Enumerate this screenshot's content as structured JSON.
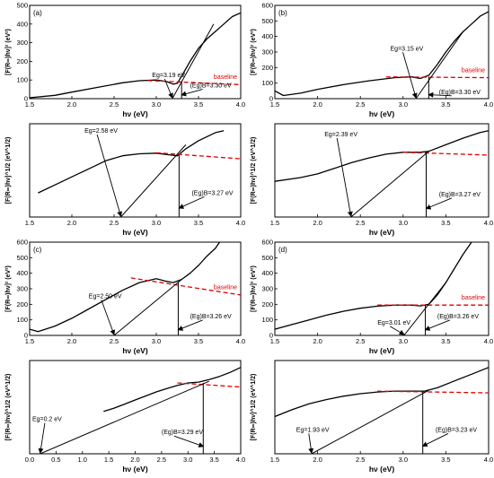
{
  "chart_data": [
    {
      "type": "line",
      "panel_label": "(a)",
      "xlabel": "hν (eV)",
      "ylabel": "[F(R∞)hν]² (eV²)",
      "xlim": [
        1.5,
        4.0
      ],
      "ylim": [
        0,
        500
      ],
      "xticks": [
        1.5,
        2.0,
        2.5,
        3.0,
        3.5,
        4.0
      ],
      "yticks": [
        0,
        100,
        200,
        300,
        400,
        500
      ],
      "curve": [
        [
          1.5,
          5
        ],
        [
          1.8,
          18
        ],
        [
          2.0,
          35
        ],
        [
          2.3,
          60
        ],
        [
          2.6,
          85
        ],
        [
          2.8,
          96
        ],
        [
          3.0,
          100
        ],
        [
          3.12,
          92
        ],
        [
          3.2,
          78
        ],
        [
          3.25,
          82
        ],
        [
          3.3,
          120
        ],
        [
          3.4,
          200
        ],
        [
          3.5,
          270
        ],
        [
          3.6,
          320
        ],
        [
          3.7,
          360
        ],
        [
          3.8,
          400
        ],
        [
          3.9,
          440
        ],
        [
          4.0,
          460
        ]
      ],
      "baseline": [
        [
          2.9,
          97
        ],
        [
          4.0,
          75
        ]
      ],
      "baseline_label": "baseline",
      "tangents": [
        [
          [
            3.19,
            0
          ],
          [
            3.68,
            400
          ]
        ]
      ],
      "vline": {
        "x": 3.3,
        "y0": 0,
        "y1": 94
      },
      "annotations": [
        {
          "text": "Eg=3.19 eV",
          "xy": [
            3.19,
            0
          ],
          "text_at": [
            2.95,
            115
          ]
        },
        {
          "text": "(Eg)B=3.30 eV",
          "xy": [
            3.3,
            15
          ],
          "text_at": [
            3.4,
            60
          ]
        }
      ]
    },
    {
      "type": "line",
      "panel_label": "(b)",
      "xlabel": "hν (eV)",
      "ylabel": "[F(R∞)hν]² (eV²)",
      "xlim": [
        1.5,
        4.0
      ],
      "ylim": [
        0,
        600
      ],
      "xticks": [
        1.5,
        2.0,
        2.5,
        3.0,
        3.5,
        4.0
      ],
      "yticks": [
        0,
        100,
        200,
        300,
        400,
        500,
        600
      ],
      "curve": [
        [
          1.5,
          50
        ],
        [
          1.6,
          20
        ],
        [
          1.8,
          35
        ],
        [
          2.0,
          60
        ],
        [
          2.3,
          90
        ],
        [
          2.6,
          115
        ],
        [
          2.9,
          135
        ],
        [
          3.1,
          140
        ],
        [
          3.2,
          130
        ],
        [
          3.3,
          150
        ],
        [
          3.4,
          220
        ],
        [
          3.5,
          300
        ],
        [
          3.6,
          370
        ],
        [
          3.7,
          430
        ],
        [
          3.8,
          480
        ],
        [
          3.9,
          530
        ],
        [
          4.0,
          560
        ]
      ],
      "baseline": [
        [
          2.8,
          140
        ],
        [
          4.0,
          135
        ]
      ],
      "baseline_label": "baseline",
      "tangents": [
        [
          [
            3.15,
            0
          ],
          [
            3.7,
            430
          ]
        ]
      ],
      "vline": {
        "x": 3.3,
        "y0": 0,
        "y1": 140
      },
      "annotations": [
        {
          "text": "Eg=3.15 eV",
          "xy": [
            3.15,
            0
          ],
          "text_at": [
            2.85,
            310
          ]
        },
        {
          "text": "(Eg)B=3.30 eV",
          "xy": [
            3.3,
            20
          ],
          "text_at": [
            3.42,
            30
          ]
        }
      ]
    },
    {
      "type": "line",
      "panel_label": "",
      "xlabel": "hν (eV)",
      "ylabel": "[F(R∞)hν]^1/2 (eV^1/2)",
      "xlim": [
        1.5,
        4.0
      ],
      "xticks": [
        1.5,
        2.0,
        2.5,
        3.0,
        3.5,
        4.0
      ],
      "curve": [
        [
          1.6,
          1.2
        ],
        [
          1.8,
          1.6
        ],
        [
          2.0,
          2.0
        ],
        [
          2.2,
          2.4
        ],
        [
          2.4,
          2.8
        ],
        [
          2.6,
          3.05
        ],
        [
          2.8,
          3.15
        ],
        [
          3.0,
          3.18
        ],
        [
          3.15,
          3.1
        ],
        [
          3.25,
          3.05
        ],
        [
          3.35,
          3.4
        ],
        [
          3.5,
          3.8
        ],
        [
          3.6,
          4.0
        ],
        [
          3.7,
          4.2
        ],
        [
          3.8,
          4.3
        ]
      ],
      "baseline": [
        [
          3.0,
          3.2
        ],
        [
          4.0,
          2.9
        ]
      ],
      "tangents": [
        [
          [
            2.58,
            0
          ],
          [
            3.35,
            3.6
          ]
        ]
      ],
      "vline": {
        "x": 3.27,
        "y0": 0,
        "y1": 3.08
      },
      "annotations": [
        {
          "text": "Eg=2.58 eV",
          "xy": [
            2.58,
            0
          ],
          "text_at": [
            2.15,
            4.2
          ]
        },
        {
          "text": "(Eg)B=3.27 eV",
          "xy": [
            3.27,
            0.4
          ],
          "text_at": [
            3.42,
            1.1
          ]
        }
      ]
    },
    {
      "type": "line",
      "panel_label": "",
      "xlabel": "hν (eV)",
      "ylabel": "[F(R∞)hν]^1/2 (eV^1/2)",
      "xlim": [
        1.5,
        4.0
      ],
      "xticks": [
        1.5,
        2.0,
        2.5,
        3.0,
        3.5,
        4.0
      ],
      "curve": [
        [
          1.5,
          1.9
        ],
        [
          1.8,
          2.1
        ],
        [
          2.0,
          2.3
        ],
        [
          2.2,
          2.6
        ],
        [
          2.4,
          2.9
        ],
        [
          2.6,
          3.15
        ],
        [
          2.8,
          3.35
        ],
        [
          3.0,
          3.45
        ],
        [
          3.2,
          3.45
        ],
        [
          3.3,
          3.5
        ],
        [
          3.5,
          3.85
        ],
        [
          3.7,
          4.2
        ],
        [
          3.9,
          4.5
        ],
        [
          4.0,
          4.6
        ]
      ],
      "baseline": [
        [
          3.0,
          3.45
        ],
        [
          4.0,
          3.3
        ]
      ],
      "tangents": [
        [
          [
            2.39,
            0
          ],
          [
            3.3,
            3.5
          ]
        ]
      ],
      "vline": {
        "x": 3.27,
        "y0": 0,
        "y1": 3.45
      },
      "annotations": [
        {
          "text": "Eg=2.39 eV",
          "xy": [
            2.39,
            0
          ],
          "text_at": [
            2.08,
            4.3
          ]
        },
        {
          "text": "(Eg)B=3.27 eV",
          "xy": [
            3.27,
            0.4
          ],
          "text_at": [
            3.42,
            1.1
          ]
        }
      ]
    },
    {
      "type": "line",
      "panel_label": "(c)",
      "xlabel": "hν (eV)",
      "ylabel": "[F(R∞)hν]² (eV²)",
      "xlim": [
        1.5,
        4.0
      ],
      "ylim": [
        0,
        600
      ],
      "xticks": [
        1.5,
        2.0,
        2.5,
        3.0,
        3.5,
        4.0
      ],
      "yticks": [
        0,
        100,
        200,
        300,
        400,
        500,
        600
      ],
      "curve": [
        [
          1.5,
          40
        ],
        [
          1.6,
          25
        ],
        [
          1.8,
          60
        ],
        [
          2.0,
          110
        ],
        [
          2.2,
          170
        ],
        [
          2.4,
          230
        ],
        [
          2.6,
          290
        ],
        [
          2.8,
          340
        ],
        [
          3.0,
          365
        ],
        [
          3.1,
          350
        ],
        [
          3.2,
          340
        ],
        [
          3.3,
          360
        ],
        [
          3.4,
          400
        ],
        [
          3.5,
          450
        ],
        [
          3.6,
          510
        ],
        [
          3.7,
          560
        ],
        [
          3.75,
          600
        ]
      ],
      "baseline": [
        [
          2.7,
          370
        ],
        [
          4.0,
          260
        ]
      ],
      "baseline_label": "baseline",
      "tangents": [
        [
          [
            2.5,
            0
          ],
          [
            3.3,
            360
          ]
        ]
      ],
      "vline": {
        "x": 3.26,
        "y0": 0,
        "y1": 340
      },
      "annotations": [
        {
          "text": "Eg=2.50 eV",
          "xy": [
            2.5,
            0
          ],
          "text_at": [
            2.2,
            240
          ]
        },
        {
          "text": "(Eg)B=3.26 eV",
          "xy": [
            3.26,
            30
          ],
          "text_at": [
            3.4,
            110
          ]
        }
      ]
    },
    {
      "type": "line",
      "panel_label": "(d)",
      "xlabel": "hν (eV)",
      "ylabel": "[F(R∞)hν]² (eV²)",
      "xlim": [
        1.5,
        4.0
      ],
      "ylim": [
        0,
        600
      ],
      "xticks": [
        1.5,
        2.0,
        2.5,
        3.0,
        3.5,
        4.0
      ],
      "yticks": [
        0,
        100,
        200,
        300,
        400,
        500,
        600
      ],
      "curve": [
        [
          1.5,
          40
        ],
        [
          1.7,
          70
        ],
        [
          1.9,
          100
        ],
        [
          2.1,
          130
        ],
        [
          2.3,
          155
        ],
        [
          2.5,
          175
        ],
        [
          2.7,
          188
        ],
        [
          2.9,
          195
        ],
        [
          3.1,
          195
        ],
        [
          3.2,
          190
        ],
        [
          3.3,
          200
        ],
        [
          3.4,
          260
        ],
        [
          3.5,
          340
        ],
        [
          3.6,
          430
        ],
        [
          3.7,
          520
        ],
        [
          3.8,
          600
        ]
      ],
      "baseline": [
        [
          2.7,
          195
        ],
        [
          4.0,
          195
        ]
      ],
      "baseline_label": "baseline",
      "tangents": [
        [
          [
            3.01,
            0
          ],
          [
            3.5,
            340
          ]
        ]
      ],
      "vline": {
        "x": 3.26,
        "y0": 0,
        "y1": 195
      },
      "annotations": [
        {
          "text": "Eg=3.01 eV",
          "xy": [
            3.01,
            0
          ],
          "text_at": [
            2.7,
            70
          ]
        },
        {
          "text": "(Eg)B=3.26 eV",
          "xy": [
            3.26,
            30
          ],
          "text_at": [
            3.4,
            110
          ]
        }
      ]
    },
    {
      "type": "line",
      "panel_label": "",
      "xlabel": "hν (eV)",
      "ylabel": "[F(R∞)hν]^1/2 (eV^1/2)",
      "xlim": [
        0,
        4.0
      ],
      "xticks": [
        0.0,
        0.5,
        1.0,
        1.5,
        2.0,
        2.5,
        3.0,
        3.5,
        4.0
      ],
      "curve": [
        [
          1.4,
          2.6
        ],
        [
          1.6,
          2.8
        ],
        [
          1.8,
          3.05
        ],
        [
          2.0,
          3.3
        ],
        [
          2.2,
          3.55
        ],
        [
          2.4,
          3.8
        ],
        [
          2.6,
          4.0
        ],
        [
          2.8,
          4.2
        ],
        [
          3.0,
          4.35
        ],
        [
          3.2,
          4.4
        ],
        [
          3.4,
          4.55
        ],
        [
          3.6,
          4.75
        ],
        [
          3.8,
          5.0
        ],
        [
          4.0,
          5.3
        ]
      ],
      "baseline": [
        [
          2.8,
          4.35
        ],
        [
          4.0,
          4.1
        ]
      ],
      "tangents": [
        [
          [
            0.2,
            0
          ],
          [
            3.4,
            4.45
          ]
        ]
      ],
      "vline": {
        "x": 3.29,
        "y0": 0,
        "y1": 4.35
      },
      "annotations": [
        {
          "text": "Eg=0.2 eV",
          "xy": [
            0.2,
            0
          ],
          "text_at": [
            0.05,
            2.0
          ]
        },
        {
          "text": "(Eg)B=3.29 eV",
          "xy": [
            3.29,
            0.4
          ],
          "text_at": [
            2.5,
            1.2
          ]
        }
      ]
    },
    {
      "type": "line",
      "panel_label": "",
      "xlabel": "hν (eV)",
      "ylabel": "[F(R∞)hν]^1/2 (eV^1/2)",
      "xlim": [
        1.5,
        4.0
      ],
      "xticks": [
        1.5,
        2.0,
        2.5,
        3.0,
        3.5,
        4.0
      ],
      "curve": [
        [
          1.5,
          2.2
        ],
        [
          1.7,
          2.6
        ],
        [
          1.9,
          2.95
        ],
        [
          2.1,
          3.2
        ],
        [
          2.3,
          3.4
        ],
        [
          2.5,
          3.55
        ],
        [
          2.7,
          3.65
        ],
        [
          2.9,
          3.7
        ],
        [
          3.1,
          3.7
        ],
        [
          3.25,
          3.7
        ],
        [
          3.4,
          3.9
        ],
        [
          3.6,
          4.3
        ],
        [
          3.8,
          4.7
        ],
        [
          4.0,
          5.1
        ]
      ],
      "baseline": [
        [
          2.7,
          3.7
        ],
        [
          4.0,
          3.6
        ]
      ],
      "tangents": [
        [
          [
            1.93,
            0
          ],
          [
            3.3,
            3.75
          ]
        ]
      ],
      "vline": {
        "x": 3.23,
        "y0": 0,
        "y1": 3.7
      },
      "annotations": [
        {
          "text": "Eg=1.93 eV",
          "xy": [
            1.93,
            0
          ],
          "text_at": [
            1.75,
            1.3
          ]
        },
        {
          "text": "(Eg)B=3.23 eV",
          "xy": [
            3.23,
            0.4
          ],
          "text_at": [
            3.38,
            1.3
          ]
        }
      ]
    }
  ]
}
